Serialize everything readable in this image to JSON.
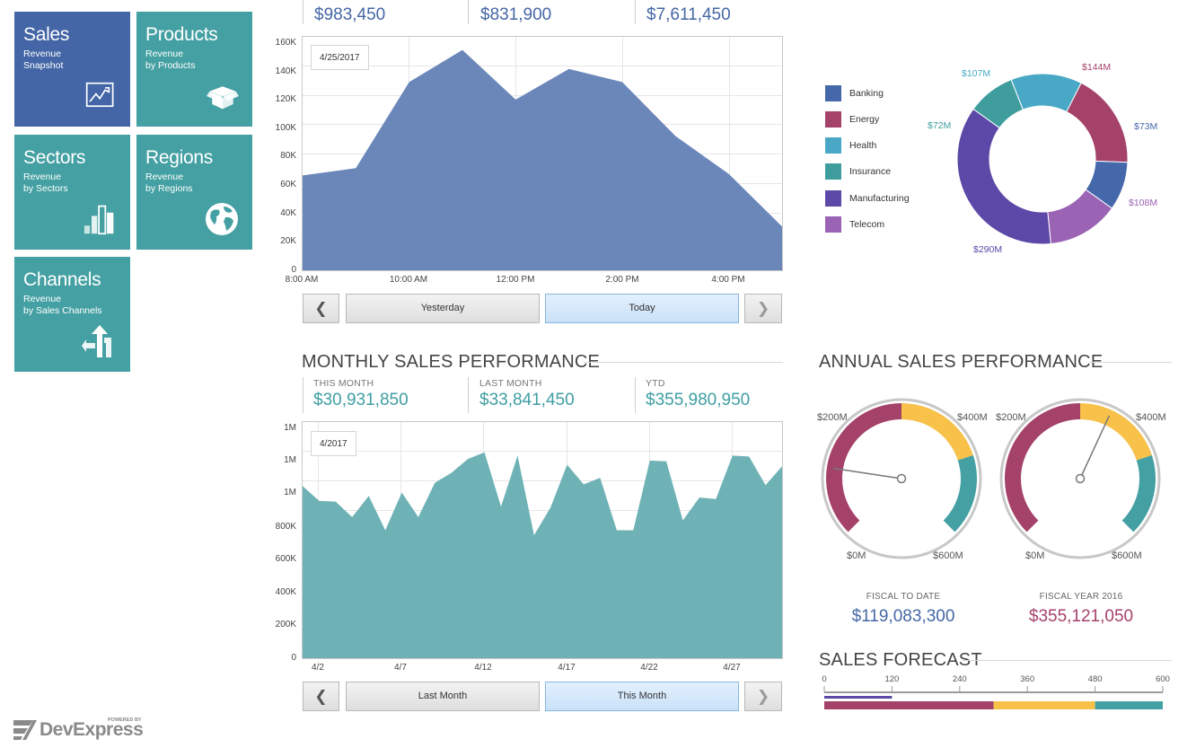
{
  "tiles": [
    {
      "title": "Sales",
      "sub1": "Revenue",
      "sub2": "Snapshot",
      "icon": "line-chart-icon"
    },
    {
      "title": "Products",
      "sub1": "Revenue",
      "sub2": "by Products",
      "icon": "box-icon"
    },
    {
      "title": "Sectors",
      "sub1": "Revenue",
      "sub2": "by Sectors",
      "icon": "bar-chart-icon"
    },
    {
      "title": "Regions",
      "sub1": "Revenue",
      "sub2": "by Regions",
      "icon": "globe-icon"
    },
    {
      "title": "Channels",
      "sub1": "Revenue",
      "sub2": "by Sales Channels",
      "icon": "split-arrows-icon"
    }
  ],
  "daily": {
    "kpis": [
      {
        "label": "",
        "value": "$983,450"
      },
      {
        "label": "",
        "value": "$831,900"
      },
      {
        "label": "",
        "value": "$7,611,450"
      }
    ],
    "date_badge": "4/25/2017",
    "prev_label": "Yesterday",
    "current_label": "Today",
    "prev_arrow": "❮",
    "next_arrow": "❯",
    "y_ticks": [
      "160K",
      "140K",
      "120K",
      "100K",
      "80K",
      "60K",
      "40K",
      "20K",
      "0"
    ],
    "x_ticks": [
      "8:00 AM",
      "10:00 AM",
      "12:00 PM",
      "2:00 PM",
      "4:00 PM"
    ]
  },
  "monthly": {
    "title": "MONTHLY SALES PERFORMANCE",
    "kpis": [
      {
        "label": "THIS MONTH",
        "value": "$30,931,850"
      },
      {
        "label": "LAST MONTH",
        "value": "$33,841,450"
      },
      {
        "label": "YTD",
        "value": "$355,980,950"
      }
    ],
    "date_badge": "4/2017",
    "prev_label": "Last Month",
    "current_label": "This Month",
    "prev_arrow": "❮",
    "next_arrow": "❯",
    "y_ticks": [
      "1M",
      "1M",
      "1M",
      "800K",
      "600K",
      "400K",
      "200K",
      "0"
    ],
    "x_ticks": [
      "4/2",
      "4/7",
      "4/12",
      "4/17",
      "4/22",
      "4/27"
    ]
  },
  "sectors": {
    "legend": [
      {
        "name": "Banking",
        "color": "#4568ab"
      },
      {
        "name": "Energy",
        "color": "#a5426a"
      },
      {
        "name": "Health",
        "color": "#48a8c5"
      },
      {
        "name": "Insurance",
        "color": "#3f9d9e"
      },
      {
        "name": "Manufacturing",
        "color": "#5c48a7"
      },
      {
        "name": "Telecom",
        "color": "#9b63b4"
      }
    ],
    "labels": [
      "$144M",
      "$73M",
      "$108M",
      "$290M",
      "$72M",
      "$107M"
    ]
  },
  "annual": {
    "title": "ANNUAL SALES PERFORMANCE",
    "gauge_ticks": [
      "$200M",
      "$400M",
      "$0M",
      "$600M"
    ],
    "fiscal_to_date_label": "FISCAL TO DATE",
    "fiscal_to_date_value": "$119,083,300",
    "fiscal_year_label": "FISCAL YEAR 2016",
    "fiscal_year_value": "$355,121,050"
  },
  "forecast": {
    "title": "SALES FORECAST",
    "ticks": [
      "0",
      "120",
      "240",
      "360",
      "480",
      "600"
    ]
  },
  "brand": {
    "powered": "POWERED BY",
    "name": "DevExpress"
  },
  "chart_data": [
    {
      "type": "area",
      "title": "",
      "x": [
        "8:00 AM",
        "9:00 AM",
        "10:00 AM",
        "11:00 AM",
        "12:00 PM",
        "1:00 PM",
        "2:00 PM",
        "3:00 PM",
        "4:00 PM",
        "5:00 PM"
      ],
      "values": [
        65000,
        70000,
        129000,
        151000,
        117000,
        138000,
        129000,
        92000,
        66000,
        30000
      ],
      "ylim": [
        0,
        160000
      ],
      "color": "#6b87b9"
    },
    {
      "type": "area",
      "title": "",
      "x": [
        "4/1",
        "4/2",
        "4/3",
        "4/4",
        "4/5",
        "4/6",
        "4/7",
        "4/8",
        "4/9",
        "4/10",
        "4/11",
        "4/12",
        "4/13",
        "4/14",
        "4/15",
        "4/16",
        "4/17",
        "4/18",
        "4/19",
        "4/20",
        "4/21",
        "4/22",
        "4/23",
        "4/24",
        "4/25",
        "4/26",
        "4/27",
        "4/28",
        "4/29",
        "4/30"
      ],
      "values": [
        1050000,
        960000,
        955000,
        860000,
        990000,
        780000,
        1010000,
        860000,
        1070000,
        1130000,
        1215000,
        1255000,
        925000,
        1235000,
        750000,
        920000,
        1180000,
        1060000,
        1100000,
        780000,
        780000,
        1205000,
        1200000,
        840000,
        980000,
        970000,
        1235000,
        1230000,
        1055000,
        1170000
      ],
      "ylim": [
        0,
        1440000
      ],
      "color": "#6fb2b6"
    },
    {
      "type": "pie",
      "title": "",
      "categories": [
        "Banking",
        "Energy",
        "Health",
        "Insurance",
        "Manufacturing",
        "Telecom"
      ],
      "values": [
        73,
        144,
        107,
        72,
        290,
        108
      ]
    },
    {
      "type": "bar",
      "title": "SALES FORECAST",
      "series": [
        {
          "name": "",
          "values": [
            120
          ]
        }
      ],
      "ranges": [
        300,
        480,
        600
      ],
      "xlim": [
        0,
        600
      ]
    }
  ],
  "gauges": [
    {
      "value": 119083300,
      "max": 600000000,
      "ranges": [
        0,
        300000000,
        460000000,
        600000000
      ]
    },
    {
      "value": 355121050,
      "max": 600000000,
      "ranges": [
        0,
        300000000,
        460000000,
        600000000
      ]
    }
  ]
}
